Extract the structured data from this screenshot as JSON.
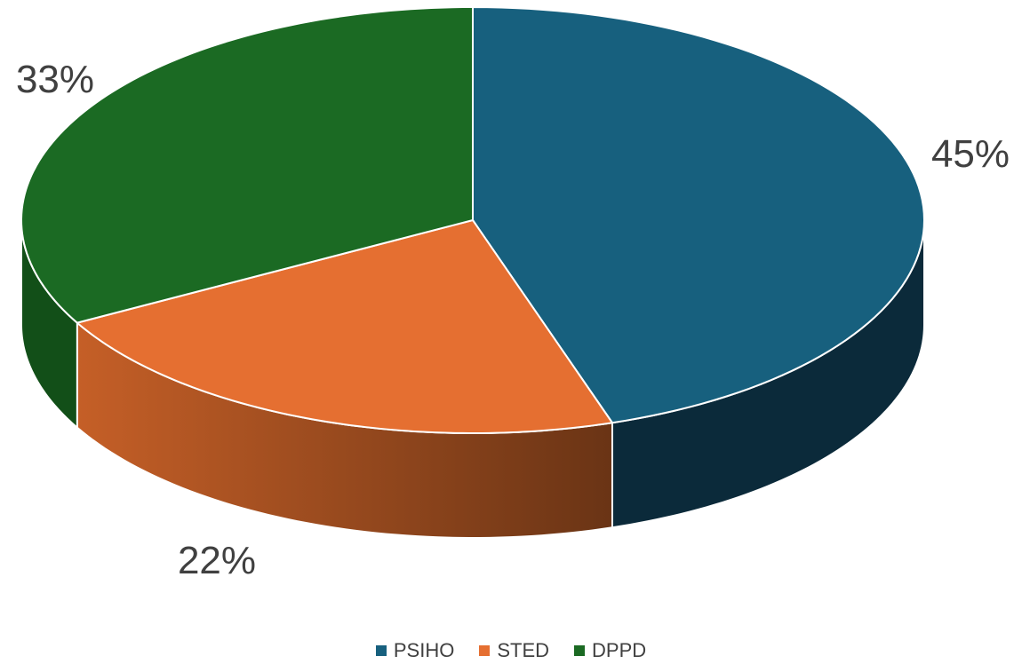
{
  "chart_data": {
    "type": "pie",
    "style": "3d",
    "categories": [
      "PSIHO",
      "STED",
      "DPPD"
    ],
    "values": [
      45,
      22,
      33
    ],
    "data_labels": [
      "45%",
      "22%",
      "33%"
    ],
    "colors": [
      "#17607e",
      "#e56f31",
      "#1b6a23"
    ],
    "legend_position": "bottom"
  }
}
